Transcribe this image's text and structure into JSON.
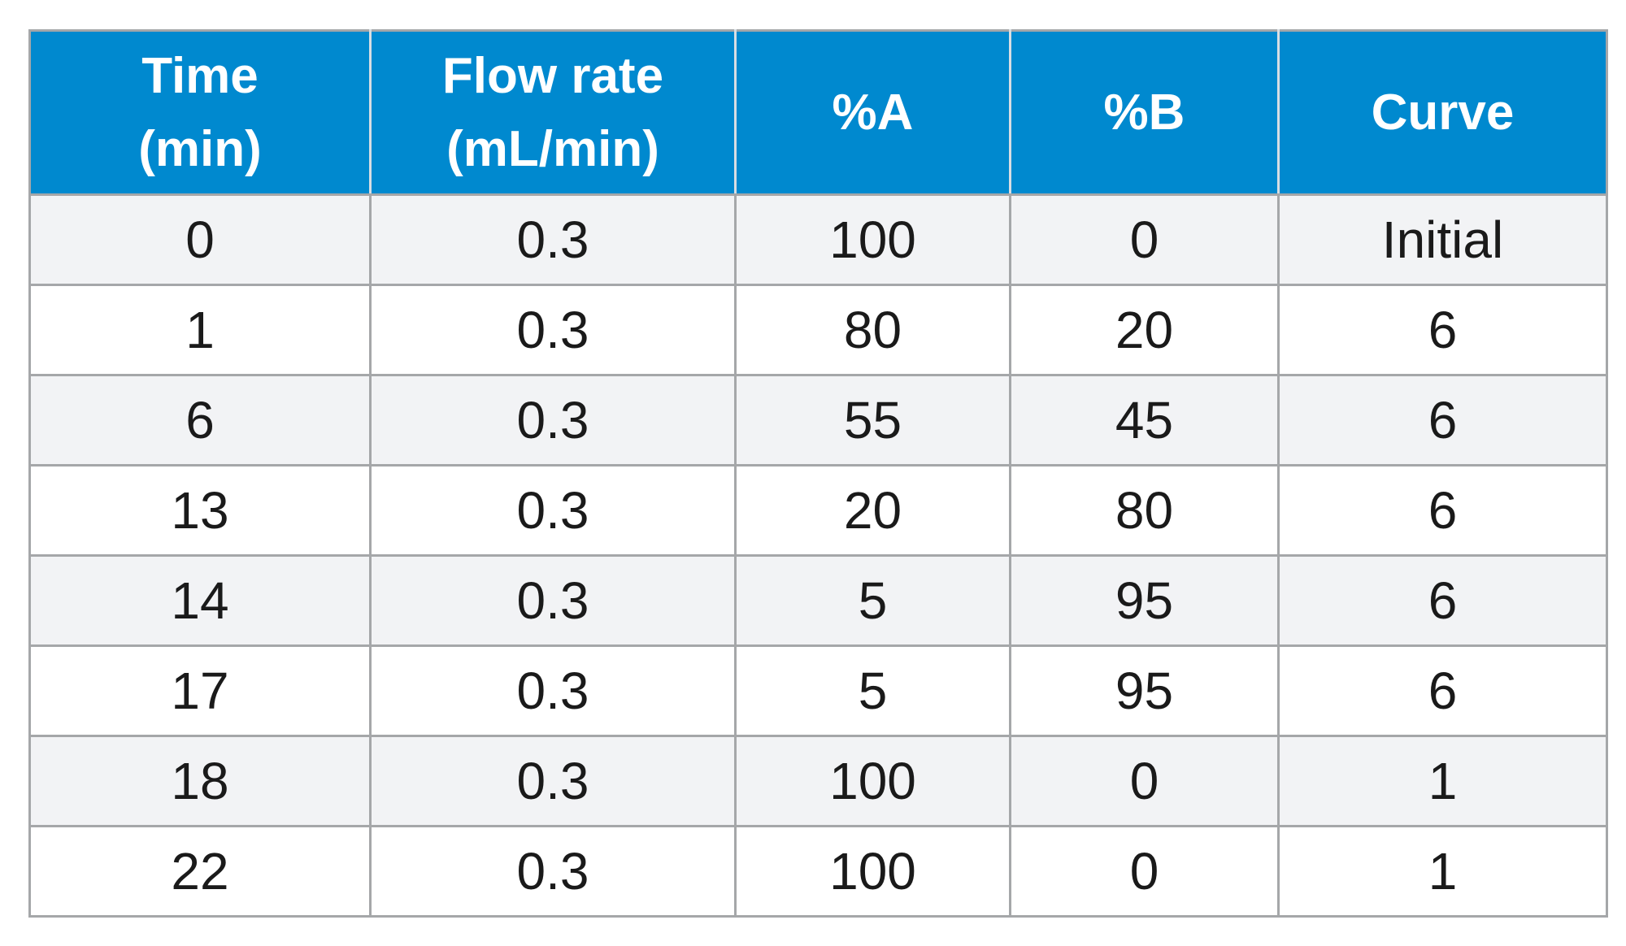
{
  "table": {
    "headers": [
      {
        "line1": "Time",
        "line2": "(min)"
      },
      {
        "line1": "Flow rate",
        "line2": "(mL/min)"
      },
      {
        "line1": "%A",
        "line2": ""
      },
      {
        "line1": "%B",
        "line2": ""
      },
      {
        "line1": "Curve",
        "line2": ""
      }
    ],
    "rows": [
      [
        "0",
        "0.3",
        "100",
        "0",
        "Initial"
      ],
      [
        "1",
        "0.3",
        "80",
        "20",
        "6"
      ],
      [
        "6",
        "0.3",
        "55",
        "45",
        "6"
      ],
      [
        "13",
        "0.3",
        "20",
        "80",
        "6"
      ],
      [
        "14",
        "0.3",
        "5",
        "95",
        "6"
      ],
      [
        "17",
        "0.3",
        "5",
        "95",
        "6"
      ],
      [
        "18",
        "0.3",
        "100",
        "0",
        "1"
      ],
      [
        "22",
        "0.3",
        "100",
        "0",
        "1"
      ]
    ]
  },
  "colors": {
    "header_bg": "#0089cf",
    "header_text": "#ffffff",
    "row_alt_bg": "#f2f3f5",
    "grid": "#a5a7a9"
  }
}
